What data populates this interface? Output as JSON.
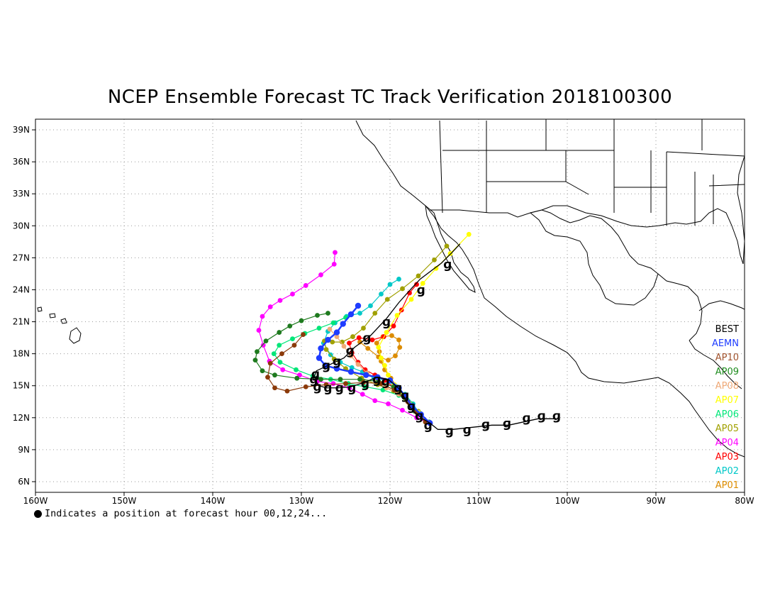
{
  "title": "NCEP Ensemble Forecast TC Track Verification 2018100300",
  "footnote": "Indicates a position at forecast hour 00,12,24...",
  "map": {
    "lon_range": [
      -160,
      -80
    ],
    "lat_range": [
      5,
      40
    ],
    "x_ticks": [
      {
        "lon": -160,
        "label": "160W"
      },
      {
        "lon": -150,
        "label": "150W"
      },
      {
        "lon": -140,
        "label": "140W"
      },
      {
        "lon": -130,
        "label": "130W"
      },
      {
        "lon": -120,
        "label": "120W"
      },
      {
        "lon": -110,
        "label": "110W"
      },
      {
        "lon": -100,
        "label": "100W"
      },
      {
        "lon": -90,
        "label": "90W"
      },
      {
        "lon": -80,
        "label": "80W"
      }
    ],
    "y_ticks": [
      {
        "lat": 6,
        "label": "6N"
      },
      {
        "lat": 9,
        "label": "9N"
      },
      {
        "lat": 12,
        "label": "12N"
      },
      {
        "lat": 15,
        "label": "15N"
      },
      {
        "lat": 18,
        "label": "18N"
      },
      {
        "lat": 21,
        "label": "21N"
      },
      {
        "lat": 24,
        "label": "24N"
      },
      {
        "lat": 27,
        "label": "27N"
      },
      {
        "lat": 30,
        "label": "30N"
      },
      {
        "lat": 33,
        "label": "33N"
      },
      {
        "lat": 36,
        "label": "36N"
      },
      {
        "lat": 39,
        "label": "39N"
      }
    ],
    "grid": "dotted"
  },
  "legend": [
    {
      "name": "BEST",
      "color": "#000000"
    },
    {
      "name": "AEMN",
      "color": "#1e3cff"
    },
    {
      "name": "AP10",
      "color": "#a0522d"
    },
    {
      "name": "AP09",
      "color": "#1e8c1e"
    },
    {
      "name": "AP08",
      "color": "#f0aa78"
    },
    {
      "name": "AP07",
      "color": "#ffff00"
    },
    {
      "name": "AP06",
      "color": "#00e678"
    },
    {
      "name": "AP05",
      "color": "#a0a000"
    },
    {
      "name": "AP04",
      "color": "#ff00ff"
    },
    {
      "name": "AP03",
      "color": "#ff0000"
    },
    {
      "name": "AP02",
      "color": "#00c8c8"
    },
    {
      "name": "AP01",
      "color": "#dc8c00"
    }
  ],
  "chart_data": {
    "type": "scatter",
    "x_unit": "deg longitude (negative = W)",
    "y_unit": "deg latitude (N)",
    "best_track": {
      "name": "BEST",
      "points": [
        [
          -101.3,
          11.9
        ],
        [
          -102.3,
          11.9
        ],
        [
          -103.3,
          11.9
        ],
        [
          -104.4,
          11.7
        ],
        [
          -105.5,
          11.5
        ],
        [
          -106.6,
          11.3
        ],
        [
          -108.5,
          11.3
        ],
        [
          -110.7,
          11.1
        ],
        [
          -112.9,
          10.9
        ],
        [
          -114.6,
          10.9
        ],
        [
          -115.5,
          11.5
        ],
        [
          -116.5,
          12.0
        ],
        [
          -117.5,
          12.7
        ],
        [
          -118.2,
          13.6
        ],
        [
          -118.8,
          14.6
        ],
        [
          -120.2,
          15.6
        ],
        [
          -121.5,
          15.8
        ],
        [
          -122.9,
          15.3
        ],
        [
          -124.4,
          14.9
        ],
        [
          -125.9,
          14.8
        ],
        [
          -127.2,
          14.8
        ],
        [
          -128.0,
          15.0
        ],
        [
          -128.6,
          15.7
        ],
        [
          -128.3,
          16.4
        ],
        [
          -127.0,
          16.9
        ],
        [
          -125.2,
          17.6
        ],
        [
          -124.0,
          18.6
        ],
        [
          -122.2,
          19.7
        ],
        [
          -120.4,
          21.3
        ],
        [
          -119.0,
          22.8
        ],
        [
          -117.6,
          24.1
        ],
        [
          -116.6,
          25.0
        ],
        [
          -114.2,
          26.5
        ],
        [
          -113.0,
          27.5
        ],
        [
          -112.1,
          28.3
        ]
      ],
      "symbols": [
        [
          -101.2,
          12.2
        ],
        [
          -102.9,
          12.2
        ],
        [
          -104.6,
          12.0
        ],
        [
          -106.8,
          11.5
        ],
        [
          -109.2,
          11.4
        ],
        [
          -111.3,
          10.9
        ],
        [
          -113.3,
          10.8
        ],
        [
          -115.7,
          11.3
        ],
        [
          -116.7,
          12.2
        ],
        [
          -117.6,
          13.1
        ],
        [
          -118.3,
          14.1
        ],
        [
          -119.1,
          14.8
        ],
        [
          -120.5,
          15.4
        ],
        [
          -121.5,
          15.6
        ],
        [
          -122.8,
          15.2
        ],
        [
          -124.3,
          14.8
        ],
        [
          -125.7,
          14.8
        ],
        [
          -127.0,
          14.8
        ],
        [
          -128.2,
          14.9
        ],
        [
          -128.6,
          15.6
        ],
        [
          -128.4,
          16.1
        ],
        [
          -127.2,
          16.9
        ],
        [
          -126.0,
          17.3
        ],
        [
          -124.5,
          18.3
        ],
        [
          -122.6,
          19.5
        ],
        [
          -120.4,
          21.0
        ],
        [
          -116.5,
          24.0
        ],
        [
          -113.5,
          26.4
        ]
      ]
    },
    "series": [
      {
        "name": "AEMN",
        "color": "#1e3cff",
        "points": [
          [
            -115.5,
            11.5
          ],
          [
            -116.5,
            12.3
          ],
          [
            -117.5,
            13.1
          ],
          [
            -118.3,
            14.0
          ],
          [
            -119.0,
            14.8
          ],
          [
            -120.0,
            15.5
          ],
          [
            -121.4,
            15.8
          ],
          [
            -122.7,
            16.0
          ],
          [
            -124.4,
            16.3
          ],
          [
            -126.0,
            16.6
          ],
          [
            -127.3,
            16.9
          ],
          [
            -128.0,
            17.6
          ],
          [
            -127.8,
            18.5
          ],
          [
            -127.0,
            19.3
          ],
          [
            -126.0,
            20.0
          ],
          [
            -125.3,
            20.8
          ],
          [
            -124.4,
            21.7
          ],
          [
            -123.6,
            22.5
          ]
        ]
      },
      {
        "name": "AP10",
        "color": "#8b3a0a",
        "points": [
          [
            -116.0,
            11.6
          ],
          [
            -117.0,
            12.5
          ],
          [
            -118.0,
            13.5
          ],
          [
            -119.5,
            14.6
          ],
          [
            -121.0,
            15.2
          ],
          [
            -123.0,
            15.3
          ],
          [
            -125.0,
            15.2
          ],
          [
            -127.2,
            15.1
          ],
          [
            -129.5,
            14.9
          ],
          [
            -131.6,
            14.5
          ],
          [
            -133.0,
            14.8
          ],
          [
            -133.8,
            15.8
          ],
          [
            -133.5,
            17.1
          ],
          [
            -132.2,
            18.0
          ],
          [
            -130.8,
            18.8
          ],
          [
            -129.8,
            19.8
          ]
        ]
      },
      {
        "name": "AP09",
        "color": "#1e7a1e",
        "points": [
          [
            -116.0,
            11.6
          ],
          [
            -117.2,
            12.6
          ],
          [
            -118.4,
            13.9
          ],
          [
            -119.6,
            14.9
          ],
          [
            -121.3,
            15.4
          ],
          [
            -123.4,
            15.6
          ],
          [
            -125.6,
            15.6
          ],
          [
            -127.8,
            15.6
          ],
          [
            -130.5,
            15.7
          ],
          [
            -133.0,
            16.0
          ],
          [
            -134.4,
            16.4
          ],
          [
            -135.2,
            17.4
          ],
          [
            -135.0,
            18.2
          ],
          [
            -134.0,
            19.2
          ],
          [
            -132.5,
            20.0
          ],
          [
            -131.3,
            20.6
          ],
          [
            -130.0,
            21.1
          ],
          [
            -128.2,
            21.6
          ],
          [
            -127.0,
            21.8
          ]
        ]
      },
      {
        "name": "AP08",
        "color": "#f0aa78",
        "points": [
          [
            -115.8,
            11.6
          ],
          [
            -116.8,
            12.4
          ],
          [
            -117.9,
            13.4
          ],
          [
            -119.0,
            14.2
          ],
          [
            -120.4,
            14.8
          ],
          [
            -121.4,
            15.6
          ],
          [
            -122.6,
            16.2
          ],
          [
            -123.6,
            17.0
          ],
          [
            -124.4,
            17.8
          ],
          [
            -125.2,
            18.7
          ],
          [
            -126.0,
            19.6
          ],
          [
            -126.8,
            20.3
          ]
        ]
      },
      {
        "name": "AP07",
        "color": "#ffff00",
        "points": [
          [
            -115.8,
            11.6
          ],
          [
            -116.8,
            12.5
          ],
          [
            -117.8,
            13.3
          ],
          [
            -118.7,
            14.2
          ],
          [
            -119.5,
            15.1
          ],
          [
            -120.2,
            16.0
          ],
          [
            -120.6,
            16.9
          ],
          [
            -121.0,
            17.6
          ],
          [
            -121.3,
            18.6
          ],
          [
            -120.4,
            20.0
          ],
          [
            -119.2,
            21.6
          ],
          [
            -117.6,
            23.1
          ],
          [
            -116.3,
            24.6
          ],
          [
            -114.8,
            26.0
          ],
          [
            -113.2,
            27.4
          ],
          [
            -111.1,
            29.2
          ]
        ]
      },
      {
        "name": "AP06",
        "color": "#00e678",
        "points": [
          [
            -115.6,
            11.6
          ],
          [
            -116.6,
            12.4
          ],
          [
            -117.6,
            13.3
          ],
          [
            -119.0,
            14.1
          ],
          [
            -120.8,
            14.6
          ],
          [
            -122.8,
            14.9
          ],
          [
            -124.7,
            15.2
          ],
          [
            -126.7,
            15.6
          ],
          [
            -128.7,
            15.9
          ],
          [
            -130.6,
            16.5
          ],
          [
            -132.4,
            17.2
          ],
          [
            -133.1,
            18.0
          ],
          [
            -132.5,
            18.8
          ],
          [
            -131.0,
            19.4
          ],
          [
            -129.6,
            19.9
          ],
          [
            -128.0,
            20.4
          ],
          [
            -126.4,
            20.9
          ],
          [
            -125.0,
            21.4
          ]
        ]
      },
      {
        "name": "AP05",
        "color": "#a0a000",
        "points": [
          [
            -115.6,
            11.6
          ],
          [
            -116.8,
            12.6
          ],
          [
            -118.2,
            13.7
          ],
          [
            -119.6,
            14.5
          ],
          [
            -121.4,
            15.1
          ],
          [
            -123.2,
            15.7
          ],
          [
            -125.0,
            16.6
          ],
          [
            -126.3,
            17.5
          ],
          [
            -127.2,
            18.4
          ],
          [
            -127.4,
            19.2
          ],
          [
            -126.5,
            19.1
          ],
          [
            -125.4,
            19.1
          ],
          [
            -124.2,
            19.6
          ],
          [
            -123.0,
            20.4
          ],
          [
            -121.7,
            21.8
          ],
          [
            -120.3,
            23.1
          ],
          [
            -118.6,
            24.1
          ],
          [
            -116.8,
            25.3
          ],
          [
            -115.0,
            26.8
          ],
          [
            -113.6,
            28.1
          ]
        ]
      },
      {
        "name": "AP04",
        "color": "#ff00ff",
        "points": [
          [
            -115.6,
            11.5
          ],
          [
            -117.0,
            12.0
          ],
          [
            -118.6,
            12.7
          ],
          [
            -120.2,
            13.3
          ],
          [
            -121.7,
            13.6
          ],
          [
            -123.1,
            14.2
          ],
          [
            -124.6,
            14.8
          ],
          [
            -126.4,
            15.2
          ],
          [
            -128.2,
            15.4
          ],
          [
            -130.2,
            16.0
          ],
          [
            -132.1,
            16.5
          ],
          [
            -133.6,
            17.3
          ],
          [
            -134.3,
            18.8
          ],
          [
            -134.8,
            20.2
          ],
          [
            -134.4,
            21.5
          ],
          [
            -133.5,
            22.4
          ],
          [
            -132.4,
            23.0
          ],
          [
            -131.0,
            23.6
          ],
          [
            -129.5,
            24.4
          ],
          [
            -127.8,
            25.4
          ],
          [
            -126.3,
            26.4
          ],
          [
            -126.2,
            27.5
          ]
        ]
      },
      {
        "name": "AP03",
        "color": "#ff0000",
        "points": [
          [
            -115.6,
            11.6
          ],
          [
            -116.6,
            12.4
          ],
          [
            -117.6,
            13.3
          ],
          [
            -118.6,
            14.1
          ],
          [
            -119.6,
            14.9
          ],
          [
            -120.6,
            15.5
          ],
          [
            -121.7,
            16.0
          ],
          [
            -122.8,
            16.5
          ],
          [
            -123.6,
            17.2
          ],
          [
            -124.3,
            18.1
          ],
          [
            -124.6,
            19.0
          ],
          [
            -123.5,
            19.5
          ],
          [
            -122.0,
            19.3
          ],
          [
            -120.7,
            19.6
          ],
          [
            -119.6,
            20.6
          ],
          [
            -118.7,
            22.1
          ],
          [
            -117.8,
            23.7
          ],
          [
            -117.0,
            24.5
          ]
        ]
      },
      {
        "name": "AP02",
        "color": "#00c8c8",
        "points": [
          [
            -115.6,
            11.6
          ],
          [
            -116.6,
            12.3
          ],
          [
            -117.4,
            13.3
          ],
          [
            -118.3,
            14.2
          ],
          [
            -119.4,
            15.0
          ],
          [
            -120.5,
            15.5
          ],
          [
            -121.8,
            15.7
          ],
          [
            -123.1,
            16.3
          ],
          [
            -124.3,
            16.7
          ],
          [
            -125.6,
            17.2
          ],
          [
            -126.7,
            17.9
          ],
          [
            -127.5,
            19.0
          ],
          [
            -127.0,
            20.1
          ],
          [
            -126.2,
            20.9
          ],
          [
            -124.9,
            21.5
          ],
          [
            -123.4,
            21.8
          ],
          [
            -122.2,
            22.5
          ],
          [
            -121.0,
            23.6
          ],
          [
            -120.0,
            24.5
          ],
          [
            -119.0,
            25.0
          ]
        ]
      },
      {
        "name": "AP01",
        "color": "#dc8c00",
        "points": [
          [
            -115.6,
            11.6
          ],
          [
            -116.6,
            12.4
          ],
          [
            -117.6,
            13.3
          ],
          [
            -118.4,
            14.1
          ],
          [
            -119.2,
            14.9
          ],
          [
            -119.9,
            15.7
          ],
          [
            -120.6,
            16.5
          ],
          [
            -121.0,
            17.3
          ],
          [
            -121.2,
            18.2
          ],
          [
            -121.5,
            19.0
          ],
          [
            -120.8,
            19.6
          ],
          [
            -119.8,
            19.7
          ],
          [
            -119.0,
            19.3
          ],
          [
            -118.9,
            18.6
          ],
          [
            -119.4,
            17.8
          ],
          [
            -120.2,
            17.4
          ],
          [
            -121.3,
            17.7
          ],
          [
            -122.5,
            18.5
          ],
          [
            -123.4,
            19.1
          ]
        ]
      }
    ]
  }
}
